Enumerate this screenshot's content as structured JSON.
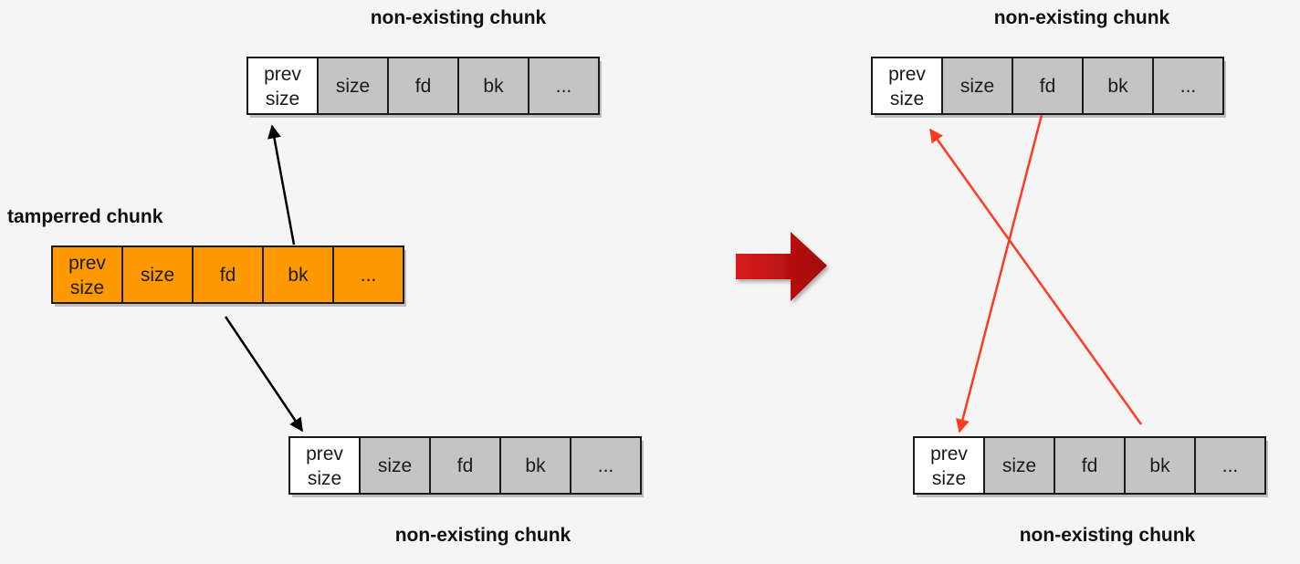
{
  "colors": {
    "background": "#f5f5f5",
    "tampered_fill": "#ff9900",
    "existing_fill": "#c4c4c4",
    "white_fill": "#ffffff",
    "border": "#1a1a1a",
    "black_arrow": "#000000",
    "red_arrow": "#ff3b1f",
    "transition_arrow": "#b30c0c"
  },
  "labels": {
    "tampered": "tamperred chunk",
    "non_existing": "non-existing chunk"
  },
  "fields": [
    {
      "line1": "prev",
      "line2": "size"
    },
    {
      "line1": "size"
    },
    {
      "line1": "fd"
    },
    {
      "line1": "bk"
    },
    {
      "line1": "..."
    }
  ],
  "panels": {
    "left": {
      "tampered_chunk": {
        "title": "tamperred chunk",
        "style": "tampered"
      },
      "top_chunk": {
        "title": "non-existing chunk",
        "style": "gray"
      },
      "bottom_chunk": {
        "title": "non-existing chunk",
        "style": "gray"
      },
      "arrows": [
        {
          "from": "tampered_chunk.bk",
          "to": "top_chunk.prev-size",
          "color": "black"
        },
        {
          "from": "tampered_chunk.fd",
          "to": "bottom_chunk.prev-size",
          "color": "black"
        }
      ]
    },
    "right": {
      "top_chunk": {
        "title": "non-existing chunk",
        "style": "gray"
      },
      "bottom_chunk": {
        "title": "non-existing chunk",
        "style": "gray"
      },
      "arrows": [
        {
          "from": "top_chunk.fd",
          "to": "bottom_chunk.prev-size",
          "color": "red"
        },
        {
          "from": "bottom_chunk.bk",
          "to": "top_chunk.prev-size",
          "color": "red"
        }
      ]
    }
  },
  "transition_icon": "right-arrow-icon"
}
